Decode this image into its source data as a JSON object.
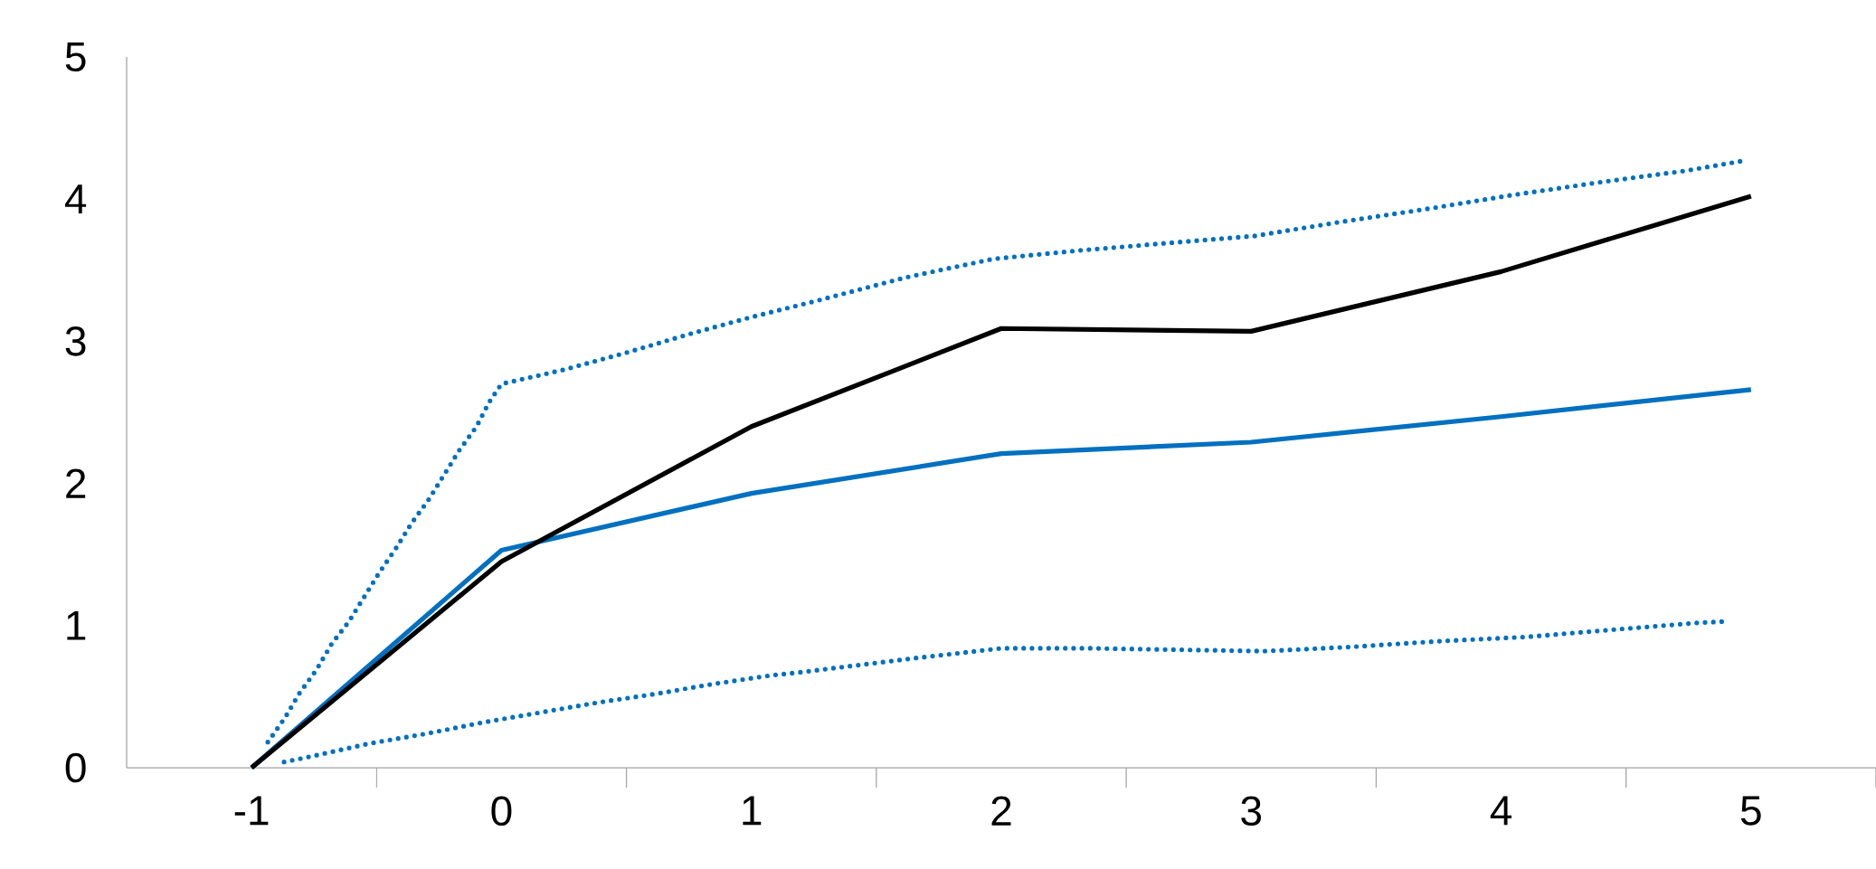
{
  "chart_data": {
    "type": "line",
    "x": [
      -1,
      0,
      1,
      2,
      3,
      4,
      5
    ],
    "xlim": [
      -1.5,
      5.5
    ],
    "xticks": [
      -1,
      0,
      1,
      2,
      3,
      4,
      5
    ],
    "ylim": [
      0,
      5
    ],
    "yticks": [
      0,
      1,
      2,
      3,
      4,
      5
    ],
    "grid": false,
    "legend": false,
    "series": [
      {
        "color": "#0070c0",
        "line_style": "dotted",
        "x": [
          -0.935,
          -0.867,
          -0.81,
          -0.74,
          -0.68,
          -0.61,
          -0.55,
          -0.49,
          -0.42,
          -0.36,
          -0.29,
          -0.23,
          -0.17,
          -0.1,
          -0.05,
          0,
          0.25,
          0.5,
          0.75,
          1.0,
          1.25,
          1.62,
          1.97,
          2.32,
          2.66,
          3.01,
          3.36,
          3.7,
          4.05,
          4.4,
          4.74,
          4.97
        ],
        "values": [
          0.18,
          0.35,
          0.52,
          0.69,
          0.87,
          1.03,
          1.2,
          1.37,
          1.55,
          1.72,
          1.89,
          2.06,
          2.23,
          2.4,
          2.57,
          2.7,
          2.8,
          2.92,
          3.05,
          3.17,
          3.28,
          3.45,
          3.58,
          3.64,
          3.69,
          3.74,
          3.84,
          3.93,
          4.03,
          4.12,
          4.2,
          4.27
        ]
      },
      {
        "color": "#0070c0",
        "line_style": "dotted",
        "x": [
          -0.87,
          -0.76,
          -0.53,
          -0.3,
          -0.07,
          0.16,
          0.39,
          0.62,
          0.85,
          1.08,
          1.19,
          1.65,
          2.0,
          2.35,
          2.7,
          3.05,
          3.4,
          3.75,
          4.1,
          4.44,
          4.79,
          4.91
        ],
        "values": [
          0.04,
          0.08,
          0.17,
          0.24,
          0.32,
          0.39,
          0.46,
          0.52,
          0.59,
          0.65,
          0.67,
          0.77,
          0.84,
          0.84,
          0.83,
          0.82,
          0.85,
          0.89,
          0.92,
          0.97,
          1.02,
          1.03
        ]
      },
      {
        "color": "#0070c0",
        "line_style": "solid",
        "values": [
          0,
          1.53,
          1.93,
          2.21,
          2.29,
          2.47,
          2.66
        ]
      },
      {
        "color": "#000000",
        "line_style": "solid",
        "values": [
          0,
          1.45,
          2.4,
          3.09,
          3.07,
          3.49,
          4.02
        ]
      }
    ]
  }
}
